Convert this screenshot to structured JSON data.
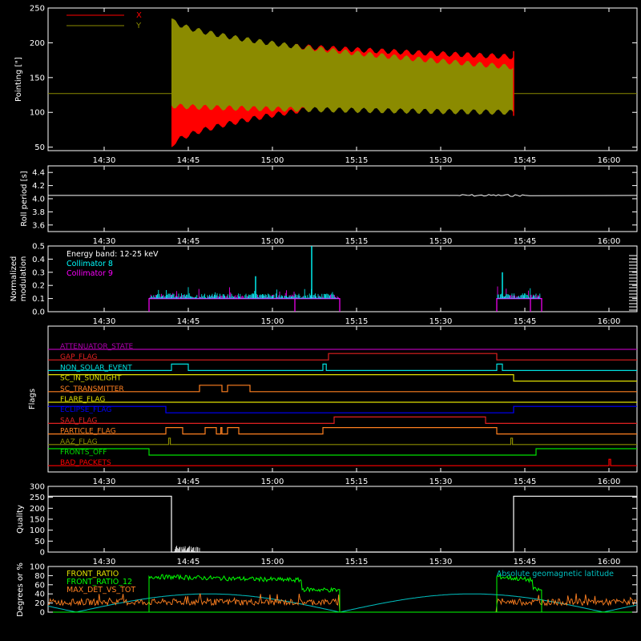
{
  "chart_data": [
    {
      "type": "line",
      "ylabel": "Pointing [\"]",
      "ylim": [
        45,
        250
      ],
      "yticks": [
        50,
        100,
        150,
        200,
        250
      ],
      "legend": [
        "X",
        "Y"
      ],
      "legend_placement": "top-left",
      "colors": {
        "X": "#ff0000",
        "Y": "#8b8b00",
        "baseline": "#8b8b00"
      },
      "series": [
        {
          "name": "X",
          "start": "14:42",
          "end": "15:43",
          "initial_range": [
            50,
            215
          ],
          "final_range": [
            140,
            180
          ]
        },
        {
          "name": "Y",
          "start": "14:42",
          "end": "15:43",
          "initial_range": [
            110,
            235
          ],
          "final_range": [
            100,
            165
          ]
        }
      ],
      "baseline_value": 127
    },
    {
      "type": "line",
      "ylabel": "Roll period [s]",
      "ylim": [
        3.5,
        4.5
      ],
      "yticks": [
        "3.6",
        "3.8",
        "4.0",
        "4.2",
        "4.4"
      ],
      "value": 4.05,
      "color": "#ffffff"
    },
    {
      "type": "line",
      "ylabel": "Normalized modulation",
      "ylim": [
        0,
        0.5
      ],
      "yticks": [
        "0.0",
        "0.1",
        "0.2",
        "0.3",
        "0.4",
        "0.5"
      ],
      "legend": [
        "Energy band: 12-25 keV",
        "Collimator 8",
        "Collimator 9"
      ],
      "colors": {
        "Collimator 8": "#00ffff",
        "Collimator 9": "#ff00ff"
      },
      "active_intervals": [
        [
          "14:38",
          "15:12"
        ],
        [
          "15:40",
          "15:48"
        ]
      ],
      "spikes": [
        {
          "x": "14:57",
          "y": 0.27
        },
        {
          "x": "15:07",
          "y": 0.5
        },
        {
          "x": "15:41",
          "y": 0.3
        }
      ]
    },
    {
      "type": "line",
      "ylabel": "Flags",
      "flags": [
        {
          "name": "ATTENUATOR_STATE",
          "color": "#b000b0",
          "high": []
        },
        {
          "name": "GAP_FLAG",
          "color": "#e02020",
          "high": [
            [
              "15:10",
              "15:40"
            ]
          ]
        },
        {
          "name": "NON_SOLAR_EVENT",
          "color": "#00e0e0",
          "high": [
            [
              "14:42",
              "14:45"
            ],
            [
              "15:09",
              "15:09.6"
            ],
            [
              "15:40",
              "15:41"
            ]
          ]
        },
        {
          "name": "SC_IN_SUNLIGHT",
          "color": "#e0e000",
          "high": [
            [
              "14:00",
              "15:43"
            ]
          ]
        },
        {
          "name": "SC_TRANSMITTER",
          "color": "#ff8020",
          "high": [
            [
              "14:47",
              "14:51"
            ],
            [
              "14:52",
              "14:56"
            ]
          ]
        },
        {
          "name": "FLARE_FLAG",
          "color": "#e0e000",
          "high": []
        },
        {
          "name": "ECLIPSE_FLAG",
          "color": "#0000ff",
          "high": [
            [
              "14:00",
              "14:41"
            ],
            [
              "15:43",
              "16:05"
            ]
          ]
        },
        {
          "name": "SAA_FLAG",
          "color": "#e02020",
          "high": [
            [
              "15:11",
              "15:38"
            ]
          ]
        },
        {
          "name": "PARTICLE_FLAG",
          "color": "#ff8020",
          "high": [
            [
              "14:41",
              "14:44"
            ],
            [
              "14:48",
              "14:50"
            ],
            [
              "14:50.8",
              "14:51"
            ],
            [
              "14:52",
              "14:54"
            ],
            [
              "15:09",
              "15:40"
            ]
          ]
        },
        {
          "name": "AAZ_FLAG",
          "color": "#8b8b00",
          "high": [
            [
              "14:41.5",
              "14:41.8"
            ],
            [
              "15:42.5",
              "15:42.8"
            ]
          ]
        },
        {
          "name": "FRONTS_OFF",
          "color": "#00e000",
          "high": [
            [
              "14:00",
              "14:38"
            ],
            [
              "15:47",
              "16:05"
            ]
          ]
        },
        {
          "name": "BAD_PACKETS",
          "color": "#ff0000",
          "high": [
            [
              "16:00",
              "16:00.3"
            ]
          ]
        }
      ]
    },
    {
      "type": "line",
      "ylabel": "Quality",
      "ylim": [
        0,
        300
      ],
      "yticks": [
        0,
        50,
        100,
        150,
        200,
        250,
        300
      ],
      "segments": [
        {
          "start": "14:00",
          "end": "14:42",
          "value": 255
        },
        {
          "start": "14:42",
          "end": "15:43",
          "value": 0
        },
        {
          "start": "15:43",
          "end": "16:05",
          "value": 255
        }
      ],
      "color": "#ffffff"
    },
    {
      "type": "line",
      "ylabel": "Degrees or %",
      "ylim": [
        0,
        100
      ],
      "yticks": [
        0,
        20,
        40,
        60,
        80,
        100
      ],
      "legend": [
        "FRONT_RATIO",
        "FRONT_RATIO_12",
        "MAX_DET_VS_TOT",
        "Absolute geomagnetic latitude"
      ],
      "colors": {
        "FRONT_RATIO": "#e0e000",
        "FRONT_RATIO_12": "#00ff00",
        "MAX_DET_VS_TOT": "#ff8020",
        "Absolute geomagnetic latitude": "#00c0c0"
      },
      "front_ratio_intervals": [
        [
          "14:38",
          "15:12"
        ],
        [
          "15:40",
          "15:48"
        ]
      ],
      "front_ratio_level": 78
    }
  ],
  "time_axis": {
    "range": [
      "14:20",
      "16:05"
    ],
    "ticks": [
      "14:30",
      "14:45",
      "15:00",
      "15:15",
      "15:30",
      "15:45",
      "16:00"
    ]
  }
}
